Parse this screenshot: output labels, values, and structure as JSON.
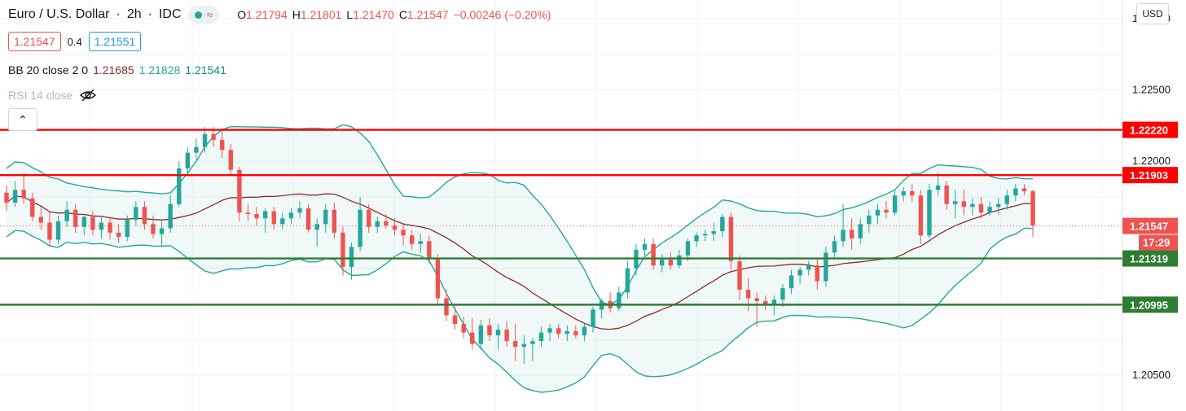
{
  "header": {
    "symbol": "Euro / U.S. Dollar",
    "interval": "2h",
    "exchange": "IDC",
    "ohlc": {
      "open_label": "O",
      "open": "1.21794",
      "high_label": "H",
      "high": "1.21801",
      "low_label": "L",
      "low": "1.21470",
      "close_label": "C",
      "close": "1.21547",
      "change": "−0.00246 (−0.20%)"
    }
  },
  "quote": {
    "bid": "1.21547",
    "spread": "0.4",
    "ask": "1.21551"
  },
  "indicators": {
    "bb_label": "BB 20 close 2 0",
    "bb_basis": "1.21685",
    "bb_upper": "1.21828",
    "bb_lower": "1.21541",
    "rsi_label": "RSI 14 close"
  },
  "currency_button": "USD",
  "collapse_glyph": "⌃",
  "colors": {
    "up": "#26a69a",
    "down": "#ef5350",
    "resistance": "#ff0000",
    "support": "#2e7d32",
    "basis": "#8b2c2c",
    "band": "#26a69a"
  },
  "chart_data": {
    "type": "candlestick",
    "y_axis": {
      "ticks": [
        "1.23000",
        "1.22500",
        "1.22000",
        "1.20500"
      ],
      "range": [
        1.2025,
        1.2313
      ]
    },
    "horizontal_lines": [
      {
        "price": 1.2222,
        "label": "1.22220",
        "kind": "resistance"
      },
      {
        "price": 1.21903,
        "label": "1.21903",
        "kind": "resistance"
      },
      {
        "price": 1.21319,
        "label": "1.21319",
        "kind": "support"
      },
      {
        "price": 1.20995,
        "label": "1.20995",
        "kind": "support"
      }
    ],
    "last_price": {
      "price": 1.21547,
      "label": "1.21547",
      "countdown": "17:29"
    },
    "candles": [
      [
        1.2178,
        1.2183,
        1.2165,
        1.2171
      ],
      [
        1.2171,
        1.2186,
        1.2168,
        1.218
      ],
      [
        1.218,
        1.2192,
        1.217,
        1.2174
      ],
      [
        1.2174,
        1.2178,
        1.2158,
        1.2161
      ],
      [
        1.2161,
        1.2168,
        1.2152,
        1.2157
      ],
      [
        1.2157,
        1.2165,
        1.214,
        1.2145
      ],
      [
        1.2145,
        1.2162,
        1.2142,
        1.2158
      ],
      [
        1.2158,
        1.2172,
        1.2154,
        1.2166
      ],
      [
        1.2166,
        1.217,
        1.215,
        1.2154
      ],
      [
        1.2154,
        1.2162,
        1.2148,
        1.2161
      ],
      [
        1.2161,
        1.2165,
        1.2148,
        1.2152
      ],
      [
        1.2152,
        1.2162,
        1.2146,
        1.2157
      ],
      [
        1.2157,
        1.216,
        1.2145,
        1.215
      ],
      [
        1.215,
        1.2156,
        1.2143,
        1.2147
      ],
      [
        1.2147,
        1.2162,
        1.2144,
        1.2159
      ],
      [
        1.2159,
        1.2172,
        1.2155,
        1.2168
      ],
      [
        1.2168,
        1.2172,
        1.2152,
        1.2156
      ],
      [
        1.2156,
        1.2162,
        1.2146,
        1.2149
      ],
      [
        1.2149,
        1.2158,
        1.214,
        1.2153
      ],
      [
        1.2153,
        1.2176,
        1.215,
        1.217
      ],
      [
        1.217,
        1.22,
        1.2168,
        1.2195
      ],
      [
        1.2195,
        1.221,
        1.219,
        1.2206
      ],
      [
        1.2206,
        1.2216,
        1.2201,
        1.221
      ],
      [
        1.221,
        1.2224,
        1.2206,
        1.2219
      ],
      [
        1.2219,
        1.2224,
        1.221,
        1.2215
      ],
      [
        1.2215,
        1.2222,
        1.2202,
        1.2208
      ],
      [
        1.2208,
        1.2212,
        1.219,
        1.2194
      ],
      [
        1.2194,
        1.2196,
        1.2158,
        1.2164
      ],
      [
        1.2164,
        1.217,
        1.2158,
        1.2163
      ],
      [
        1.2163,
        1.2168,
        1.2155,
        1.216
      ],
      [
        1.216,
        1.2167,
        1.215,
        1.2165
      ],
      [
        1.2165,
        1.2168,
        1.2152,
        1.2156
      ],
      [
        1.2156,
        1.2164,
        1.2152,
        1.216
      ],
      [
        1.216,
        1.2167,
        1.2156,
        1.2164
      ],
      [
        1.2164,
        1.2172,
        1.216,
        1.2167
      ],
      [
        1.2167,
        1.217,
        1.215,
        1.2152
      ],
      [
        1.2152,
        1.216,
        1.214,
        1.2156
      ],
      [
        1.2156,
        1.217,
        1.215,
        1.2166
      ],
      [
        1.2166,
        1.2171,
        1.2146,
        1.215
      ],
      [
        1.215,
        1.2154,
        1.212,
        1.2126
      ],
      [
        1.2126,
        1.2143,
        1.2117,
        1.214
      ],
      [
        1.214,
        1.2175,
        1.2137,
        1.2166
      ],
      [
        1.2166,
        1.217,
        1.215,
        1.2154
      ],
      [
        1.2154,
        1.2161,
        1.215,
        1.2158
      ],
      [
        1.2158,
        1.2163,
        1.2153,
        1.2155
      ],
      [
        1.2155,
        1.216,
        1.2148,
        1.2152
      ],
      [
        1.2152,
        1.2156,
        1.2141,
        1.2148
      ],
      [
        1.2148,
        1.2152,
        1.2138,
        1.2142
      ],
      [
        1.2142,
        1.2149,
        1.2136,
        1.2144
      ],
      [
        1.2144,
        1.2148,
        1.2128,
        1.2132
      ],
      [
        1.2132,
        1.2135,
        1.21,
        1.2104
      ],
      [
        1.2104,
        1.211,
        1.2088,
        1.2092
      ],
      [
        1.2092,
        1.2098,
        1.2082,
        1.2086
      ],
      [
        1.2086,
        1.2091,
        1.2076,
        1.208
      ],
      [
        1.208,
        1.209,
        1.2068,
        1.2072
      ],
      [
        1.2072,
        1.2089,
        1.2068,
        1.2085
      ],
      [
        1.2085,
        1.209,
        1.2074,
        1.2078
      ],
      [
        1.2078,
        1.2086,
        1.2068,
        1.2082
      ],
      [
        1.2082,
        1.2088,
        1.207,
        1.2074
      ],
      [
        1.2074,
        1.2086,
        1.206,
        1.207
      ],
      [
        1.207,
        1.2078,
        1.2058,
        1.2072
      ],
      [
        1.2072,
        1.2076,
        1.206,
        1.2074
      ],
      [
        1.2074,
        1.2084,
        1.207,
        1.208
      ],
      [
        1.208,
        1.2086,
        1.2074,
        1.2083
      ],
      [
        1.2083,
        1.2086,
        1.2076,
        1.2079
      ],
      [
        1.2079,
        1.2085,
        1.2074,
        1.2081
      ],
      [
        1.2081,
        1.2085,
        1.2076,
        1.2078
      ],
      [
        1.2078,
        1.2086,
        1.2074,
        1.2084
      ],
      [
        1.2084,
        1.2098,
        1.208,
        1.2096
      ],
      [
        1.2096,
        1.2104,
        1.209,
        1.2102
      ],
      [
        1.2102,
        1.2108,
        1.2094,
        1.2097
      ],
      [
        1.2097,
        1.2112,
        1.2095,
        1.2108
      ],
      [
        1.2108,
        1.213,
        1.2104,
        1.2125
      ],
      [
        1.2125,
        1.2142,
        1.212,
        1.2138
      ],
      [
        1.2138,
        1.2146,
        1.2134,
        1.2142
      ],
      [
        1.2142,
        1.2146,
        1.2124,
        1.2127
      ],
      [
        1.2127,
        1.2135,
        1.2122,
        1.2131
      ],
      [
        1.2131,
        1.2136,
        1.2124,
        1.2127
      ],
      [
        1.2127,
        1.2138,
        1.2125,
        1.2134
      ],
      [
        1.2134,
        1.2146,
        1.213,
        1.2144
      ],
      [
        1.2144,
        1.215,
        1.214,
        1.2148
      ],
      [
        1.2148,
        1.2152,
        1.2144,
        1.2149
      ],
      [
        1.2149,
        1.2157,
        1.2144,
        1.2151
      ],
      [
        1.2151,
        1.2163,
        1.2147,
        1.2161
      ],
      [
        1.2161,
        1.2164,
        1.2124,
        1.213
      ],
      [
        1.213,
        1.2134,
        1.2103,
        1.211
      ],
      [
        1.211,
        1.2118,
        1.2095,
        1.2104
      ],
      [
        1.2104,
        1.2108,
        1.2084,
        1.2102
      ],
      [
        1.2102,
        1.2106,
        1.2096,
        1.21
      ],
      [
        1.21,
        1.2106,
        1.2092,
        1.2103
      ],
      [
        1.2103,
        1.2114,
        1.2098,
        1.2111
      ],
      [
        1.2111,
        1.2124,
        1.2107,
        1.212
      ],
      [
        1.212,
        1.2126,
        1.2114,
        1.2124
      ],
      [
        1.2124,
        1.213,
        1.212,
        1.2127
      ],
      [
        1.2127,
        1.2132,
        1.211,
        1.2116
      ],
      [
        1.2116,
        1.214,
        1.2112,
        1.2136
      ],
      [
        1.2136,
        1.2148,
        1.2132,
        1.2144
      ],
      [
        1.2144,
        1.217,
        1.214,
        1.2152
      ],
      [
        1.2152,
        1.216,
        1.2138,
        1.2146
      ],
      [
        1.2146,
        1.216,
        1.2142,
        1.2156
      ],
      [
        1.2156,
        1.2166,
        1.215,
        1.2162
      ],
      [
        1.2162,
        1.217,
        1.2156,
        1.2166
      ],
      [
        1.2166,
        1.2172,
        1.216,
        1.2164
      ],
      [
        1.2164,
        1.218,
        1.2162,
        1.2176
      ],
      [
        1.2176,
        1.2182,
        1.2172,
        1.2179
      ],
      [
        1.2179,
        1.2184,
        1.2172,
        1.2176
      ],
      [
        1.2176,
        1.218,
        1.2142,
        1.2148
      ],
      [
        1.2148,
        1.2184,
        1.2146,
        1.218
      ],
      [
        1.218,
        1.2192,
        1.2176,
        1.2183
      ],
      [
        1.2183,
        1.2186,
        1.2166,
        1.217
      ],
      [
        1.217,
        1.218,
        1.216,
        1.2172
      ],
      [
        1.2172,
        1.218,
        1.2162,
        1.2168
      ],
      [
        1.2168,
        1.2174,
        1.2162,
        1.217
      ],
      [
        1.217,
        1.2175,
        1.216,
        1.2164
      ],
      [
        1.2164,
        1.2172,
        1.2162,
        1.2168
      ],
      [
        1.2168,
        1.2174,
        1.2163,
        1.217
      ],
      [
        1.217,
        1.218,
        1.2166,
        1.2176
      ],
      [
        1.2176,
        1.2184,
        1.2172,
        1.2181
      ],
      [
        1.2181,
        1.2184,
        1.2176,
        1.2179
      ],
      [
        1.2179,
        1.218,
        1.2147,
        1.2155
      ]
    ]
  }
}
